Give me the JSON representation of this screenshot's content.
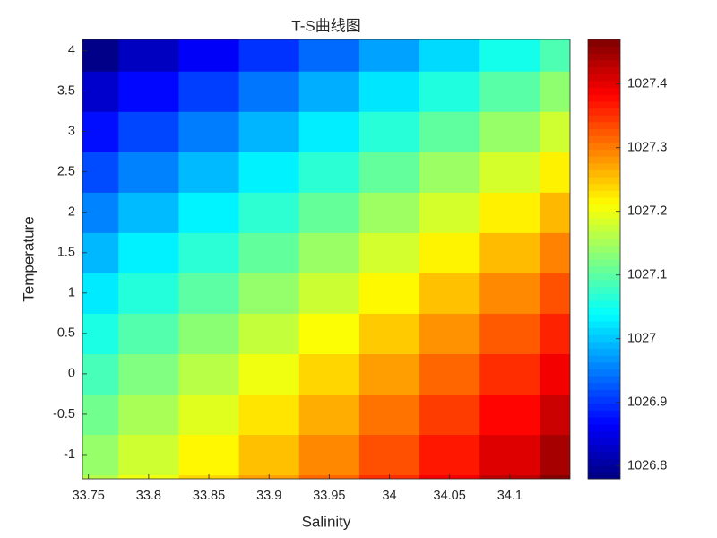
{
  "chart_data": {
    "type": "heatmap",
    "title": "T-S曲线图",
    "x_label": "Salinity",
    "y_label": "Temperature",
    "colormap": "jet",
    "x": [
      33.75,
      33.8,
      33.85,
      33.9,
      33.95,
      34.0,
      34.05,
      34.1,
      34.15
    ],
    "y": [
      -1.5,
      -1.0,
      -0.5,
      0,
      0.5,
      1.0,
      1.5,
      2.0,
      2.5,
      3.0,
      3.5,
      4.0
    ],
    "z": [
      [
        1027.163,
        1027.201,
        1027.239,
        1027.277,
        1027.315,
        1027.353,
        1027.391,
        1027.429,
        1027.467
      ],
      [
        1027.14,
        1027.178,
        1027.216,
        1027.254,
        1027.292,
        1027.33,
        1027.368,
        1027.406,
        1027.444
      ],
      [
        1027.115,
        1027.153,
        1027.191,
        1027.229,
        1027.267,
        1027.305,
        1027.343,
        1027.381,
        1027.419
      ],
      [
        1027.087,
        1027.125,
        1027.163,
        1027.201,
        1027.239,
        1027.277,
        1027.315,
        1027.353,
        1027.391
      ],
      [
        1027.057,
        1027.095,
        1027.133,
        1027.171,
        1027.209,
        1027.247,
        1027.285,
        1027.323,
        1027.361
      ],
      [
        1027.025,
        1027.063,
        1027.101,
        1027.139,
        1027.177,
        1027.215,
        1027.253,
        1027.291,
        1027.329
      ],
      [
        1026.991,
        1027.029,
        1027.067,
        1027.105,
        1027.143,
        1027.181,
        1027.219,
        1027.257,
        1027.295
      ],
      [
        1026.955,
        1026.993,
        1027.031,
        1027.069,
        1027.107,
        1027.145,
        1027.183,
        1027.221,
        1027.259
      ],
      [
        1026.916,
        1026.954,
        1026.992,
        1027.03,
        1027.068,
        1027.106,
        1027.144,
        1027.182,
        1027.22
      ],
      [
        1026.875,
        1026.913,
        1026.951,
        1026.989,
        1027.027,
        1027.065,
        1027.103,
        1027.141,
        1027.179
      ],
      [
        1026.832,
        1026.87,
        1026.908,
        1026.946,
        1026.984,
        1027.022,
        1027.06,
        1027.098,
        1027.136
      ],
      [
        1026.786,
        1026.824,
        1026.862,
        1026.9,
        1026.938,
        1026.976,
        1027.014,
        1027.052,
        1027.09
      ]
    ],
    "xlim": [
      33.745,
      34.15
    ],
    "xticks": [
      33.75,
      33.8,
      33.85,
      33.9,
      33.95,
      34,
      34.05,
      34.1
    ],
    "ylim": [
      -1.3,
      4.14
    ],
    "yticks": [
      -1,
      -0.5,
      0,
      0.5,
      1,
      1.5,
      2,
      2.5,
      3,
      3.5,
      4
    ],
    "colorbar": {
      "lim": [
        1026.78,
        1027.47
      ],
      "ticks": [
        1026.8,
        1026.9,
        1027,
        1027.1,
        1027.2,
        1027.3,
        1027.4
      ]
    }
  }
}
